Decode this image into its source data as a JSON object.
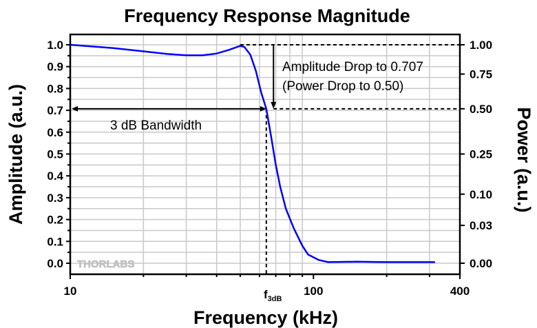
{
  "chart_data": {
    "type": "line",
    "title": "Frequency Response Magnitude",
    "xlabel": "Frequency (kHz)",
    "ylabel": "Amplitude (a.u.)",
    "y2label": "Power (a.u.)",
    "xscale": "log",
    "xlim": [
      10,
      400
    ],
    "ylim": [
      0,
      1.0
    ],
    "x_tick_labels": [
      "10",
      "100",
      "400"
    ],
    "y_tick_labels": [
      "0.0",
      "0.1",
      "0.2",
      "0.3",
      "0.4",
      "0.5",
      "0.6",
      "0.7",
      "0.8",
      "0.9",
      "1.0"
    ],
    "y2_ticks": [
      {
        "label": "1.00",
        "power": 1.0
      },
      {
        "label": "0.75",
        "power": 0.75
      },
      {
        "label": "0.50",
        "power": 0.5
      },
      {
        "label": "0.25",
        "power": 0.25
      },
      {
        "label": "0.10",
        "power": 0.1
      },
      {
        "label": "0.03",
        "power": 0.03
      },
      {
        "label": "0.00",
        "power": 0.0
      }
    ],
    "grid": true,
    "series_color": "#0000ff",
    "series": [
      {
        "x": [
          10,
          15,
          20,
          25,
          30,
          35,
          40,
          45,
          50,
          52,
          55,
          58,
          61,
          64,
          67,
          70,
          73,
          77,
          83,
          90,
          95,
          105,
          115,
          150,
          200,
          250,
          316
        ],
        "y": [
          1.0,
          0.985,
          0.97,
          0.958,
          0.952,
          0.952,
          0.96,
          0.977,
          0.995,
          0.99,
          0.955,
          0.88,
          0.78,
          0.707,
          0.58,
          0.45,
          0.35,
          0.25,
          0.16,
          0.08,
          0.04,
          0.015,
          0.005,
          0.007,
          0.005,
          0.005,
          0.005
        ]
      }
    ],
    "annotations": {
      "drop_line1": "Amplitude Drop to 0.707",
      "drop_line2": "(Power Drop to 0.50)",
      "bandwidth": "3 dB Bandwidth",
      "f3db_main": "f",
      "f3db_sub": "3dB",
      "f3db_value": 64,
      "arrow_x": 68.5,
      "level_amplitude": 0.707
    },
    "watermark": "THORLABS"
  }
}
